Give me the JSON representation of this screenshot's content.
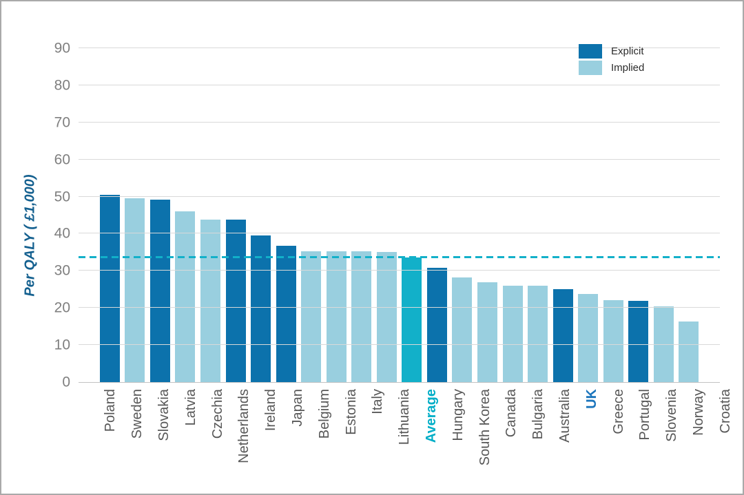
{
  "chart_data": {
    "type": "bar",
    "title": "",
    "xlabel": "",
    "ylabel": "Per QALY ( £1,000)",
    "ylim": [
      0,
      90
    ],
    "yticks": [
      0,
      10,
      20,
      30,
      40,
      50,
      60,
      70,
      80,
      90
    ],
    "grid": true,
    "legend": {
      "position": "top-right",
      "entries": [
        {
          "label": "Explicit",
          "type": "explicit",
          "color": "#0c72ac"
        },
        {
          "label": "Implied",
          "type": "implied",
          "color": "#99cfdf"
        }
      ]
    },
    "average_line": {
      "value": 33.5,
      "style": "dashed",
      "color": "#12b0c9"
    },
    "colors": {
      "explicit": "#0c72ac",
      "implied": "#99cfdf",
      "average": "#12b0c9"
    },
    "label_colors": {
      "default": "#575757",
      "Average": "#00aec7",
      "UK": "#1b75bc"
    },
    "emphasized_labels": [
      "Average",
      "UK"
    ],
    "bars": [
      {
        "category": "Poland",
        "value": 50.5,
        "type": "explicit"
      },
      {
        "category": "Sweden",
        "value": 49.6,
        "type": "implied"
      },
      {
        "category": "Slovakia",
        "value": 49.2,
        "type": "explicit"
      },
      {
        "category": "Latvia",
        "value": 46.0,
        "type": "implied"
      },
      {
        "category": "Czechia",
        "value": 43.8,
        "type": "implied"
      },
      {
        "category": "Netherlands",
        "value": 43.8,
        "type": "explicit"
      },
      {
        "category": "Ireland",
        "value": 39.5,
        "type": "explicit"
      },
      {
        "category": "Japan",
        "value": 36.8,
        "type": "explicit"
      },
      {
        "category": "Belgium",
        "value": 35.3,
        "type": "implied"
      },
      {
        "category": "Estonia",
        "value": 35.3,
        "type": "implied"
      },
      {
        "category": "Italy",
        "value": 35.3,
        "type": "implied"
      },
      {
        "category": "Lithuania",
        "value": 35.0,
        "type": "implied"
      },
      {
        "category": "Average",
        "value": 33.5,
        "type": "average"
      },
      {
        "category": "Hungary",
        "value": 30.8,
        "type": "explicit"
      },
      {
        "category": "South Korea",
        "value": 28.2,
        "type": "implied"
      },
      {
        "category": "Canada",
        "value": 27.0,
        "type": "implied"
      },
      {
        "category": "Bulgaria",
        "value": 26.0,
        "type": "implied"
      },
      {
        "category": "Australia",
        "value": 26.0,
        "type": "implied"
      },
      {
        "category": "UK",
        "value": 25.0,
        "type": "explicit"
      },
      {
        "category": "Greece",
        "value": 23.8,
        "type": "implied"
      },
      {
        "category": "Portugal",
        "value": 22.0,
        "type": "implied"
      },
      {
        "category": "Slovenia",
        "value": 21.9,
        "type": "explicit"
      },
      {
        "category": "Norway",
        "value": 20.5,
        "type": "implied"
      },
      {
        "category": "Croatia",
        "value": 16.3,
        "type": "implied"
      }
    ]
  }
}
